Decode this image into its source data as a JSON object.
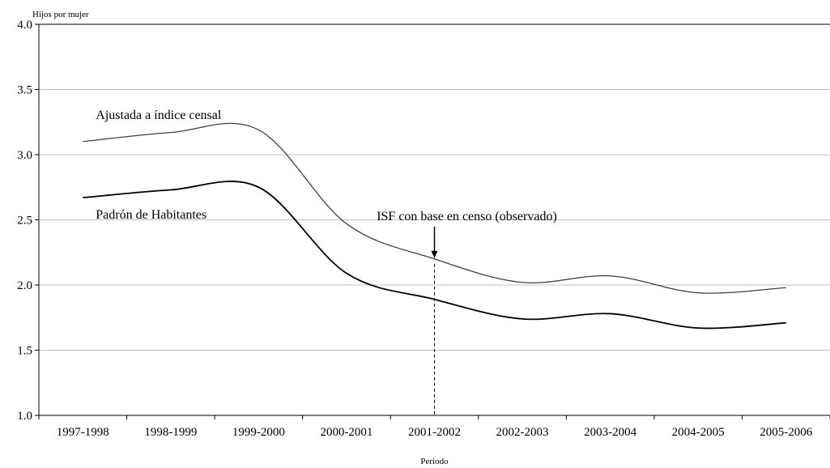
{
  "chart_data": {
    "type": "line",
    "ylabel": "Hijos por mujer",
    "xlabel": "Periodo",
    "ylim": [
      1.0,
      4.0
    ],
    "yticks": [
      "1.0",
      "1.5",
      "2.0",
      "2.5",
      "3.0",
      "3.5",
      "4.0"
    ],
    "grid": true,
    "categories": [
      "1997-1998",
      "1998-1999",
      "1999-2000",
      "2000-2001",
      "2001-2002",
      "2002-2003",
      "2003-2004",
      "2004-2005",
      "2005-2006"
    ],
    "series": [
      {
        "name": "Ajustada a índice censal",
        "values": [
          3.1,
          3.17,
          3.19,
          2.47,
          2.2,
          2.02,
          2.07,
          1.94,
          1.98
        ],
        "color": "#404040"
      },
      {
        "name": "Padrón de Habitantes",
        "values": [
          2.67,
          2.73,
          2.75,
          2.09,
          1.89,
          1.74,
          1.78,
          1.67,
          1.71
        ],
        "color": "#000000"
      }
    ],
    "annotation": {
      "text": "ISF con base en censo (observado)",
      "category": "2001-2002"
    }
  }
}
